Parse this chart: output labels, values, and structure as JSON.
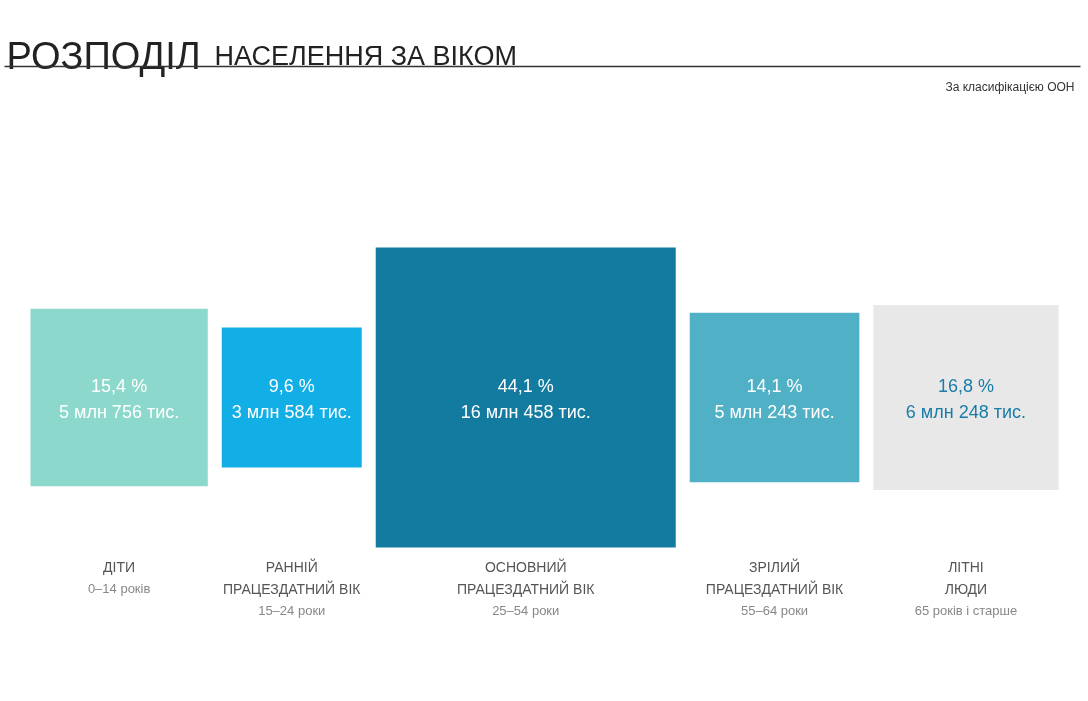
{
  "chart_data": {
    "type": "other",
    "title": "РОЗПОДІЛ",
    "subtitle": "НАСЕЛЕННЯ ЗА ВІКОМ",
    "categories": [
      "ДІТИ",
      "РАННІЙ ПРАЦЕЗДАТНИЙ ВІК",
      "ОСНОВНИЙ ПРАЦЕЗДАТНИЙ ВІК",
      "ЗРІЛИЙ ПРАЦЕЗДАТНИЙ ВІК",
      "ЛІТНІ ЛЮДИ"
    ],
    "values": [
      15.4,
      9.6,
      44.1,
      14.1,
      16.8
    ],
    "value_labels": [
      "15,4 %\n5 млн 756 тис.",
      "9,6 %\n3 млн 584 тис.",
      "44,1 %\n16 млн 458 тис.",
      "14,1 %\n5 млн 243 тис.",
      "16,8 %\n6 млн 248 тис."
    ],
    "colors": [
      "#8dd8cc",
      "#12aee6",
      "#137ba0",
      "#4fb0c6",
      "#e8e8e8"
    ],
    "annotations": [
      "За класифікацією ООН",
      {
        "text": "0–14 років",
        "x": "ДІТИ"
      },
      {
        "text": "15–24 роки",
        "x": "РАННІЙ ПРАЦЕЗДАТНИЙ ВІК"
      },
      {
        "text": "25–54 роки",
        "x": "ОСНОВНИЙ ПРАЦЕЗДАТНИЙ ВІК"
      },
      {
        "text": "55–64 роки",
        "x": "ЗРІЛИЙ ПРАЦЕЗДАТНИЙ ВІК"
      },
      {
        "text": "65 років і старше",
        "x": "ЛІТНІ ЛЮДИ"
      }
    ]
  }
}
